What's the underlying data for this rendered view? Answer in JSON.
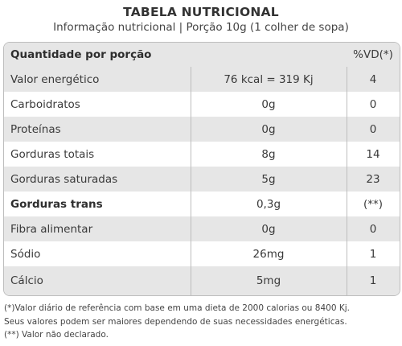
{
  "header": {
    "title": "TABELA NUTRICIONAL",
    "subtitle": "Informação nutricional | Porção 10g (1 colher de sopa)"
  },
  "table": {
    "header": {
      "label": "Quantidade por porção",
      "vd": "%VD(*)"
    },
    "rows": [
      {
        "name": "Valor energético",
        "qty": "76 kcal = 319 Kj",
        "vd": "4"
      },
      {
        "name": "Carboidratos",
        "qty": "0g",
        "vd": "0"
      },
      {
        "name": "Proteínas",
        "qty": "0g",
        "vd": "0"
      },
      {
        "name": "Gorduras totais",
        "qty": "8g",
        "vd": "14"
      },
      {
        "name": "Gorduras saturadas",
        "qty": "5g",
        "vd": "23"
      },
      {
        "name": "Gorduras trans",
        "qty": "0,3g",
        "vd": "(**)"
      },
      {
        "name": "Fibra alimentar",
        "qty": "0g",
        "vd": "0"
      },
      {
        "name": "Sódio",
        "qty": "26mg",
        "vd": "1"
      },
      {
        "name": "Cálcio",
        "qty": "5mg",
        "vd": "1"
      }
    ]
  },
  "footnotes": [
    "(*)Valor diário de referência com base em uma dieta de 2000 calorias ou 8400 Kj.",
    "Seus valores podem ser maiores dependendo de suas necessidades energéticas.",
    "(**) Valor não declarado."
  ]
}
